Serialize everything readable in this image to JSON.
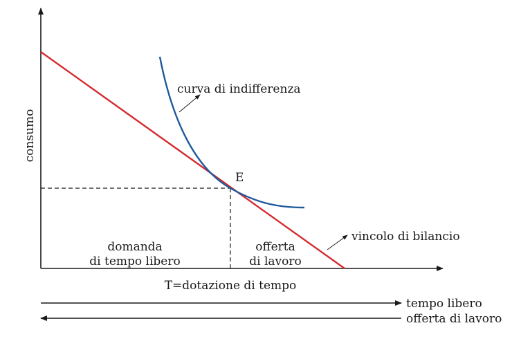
{
  "labels": {
    "y_axis": "consumo",
    "x_axis": "T=dotazione di tempo",
    "indifference_curve": "curva di indifferenza",
    "equilibrium_point": "E",
    "budget_constraint": "vincolo di bilancio",
    "leisure_demand_line1": "domanda",
    "leisure_demand_line2": "di tempo libero",
    "labor_supply_line1": "offerta",
    "labor_supply_line2": "di lavoro",
    "arrow_right": "tempo libero",
    "arrow_left": "offerta di lavoro"
  },
  "colors": {
    "axis": "#1a1a1a",
    "budget_line": "#d42a30",
    "indifference_curve": "#1f5a9a",
    "dashed": "#1a1a1a"
  }
}
